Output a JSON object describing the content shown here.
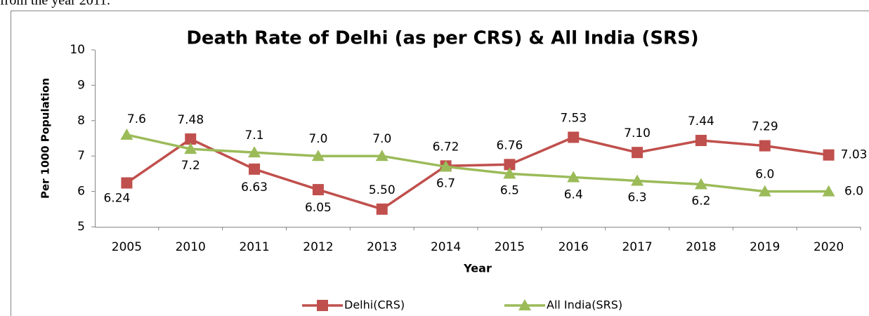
{
  "caption": "from the year 2011.",
  "chart_data": {
    "type": "line",
    "title": "Death Rate of Delhi (as per CRS) & All India (SRS)",
    "x_label": "Year",
    "y_label": "Per 1000 Population",
    "categories": [
      "2005",
      "2010",
      "2011",
      "2012",
      "2013",
      "2014",
      "2015",
      "2016",
      "2017",
      "2018",
      "2019",
      "2020"
    ],
    "series": [
      {
        "name": "Delhi(CRS)",
        "color": "#c0504d",
        "marker": "square",
        "values": [
          6.24,
          7.48,
          6.63,
          6.05,
          5.5,
          6.72,
          6.76,
          7.53,
          7.1,
          7.44,
          7.29,
          7.03
        ],
        "value_labels": [
          "6.24",
          "7.48",
          "6.63",
          "6.05",
          "5.50",
          "6.72",
          "6.76",
          "7.53",
          "7.10",
          "7.44",
          "7.29",
          "7.03"
        ]
      },
      {
        "name": "All India(SRS)",
        "color": "#9bbb59",
        "marker": "triangle",
        "values": [
          7.6,
          7.2,
          7.1,
          7.0,
          7.0,
          6.7,
          6.5,
          6.4,
          6.3,
          6.2,
          6.0,
          6.0
        ],
        "value_labels": [
          "7.6",
          "7.2",
          "7.1",
          "7.0",
          "7.0",
          "6.7",
          "6.5",
          "6.4",
          "6.3",
          "6.2",
          "6.0",
          "6.0"
        ]
      }
    ],
    "ylim": [
      5,
      10
    ],
    "yticks": [
      5,
      6,
      7,
      8,
      9,
      10
    ],
    "grid": false,
    "legend": "bottom"
  }
}
